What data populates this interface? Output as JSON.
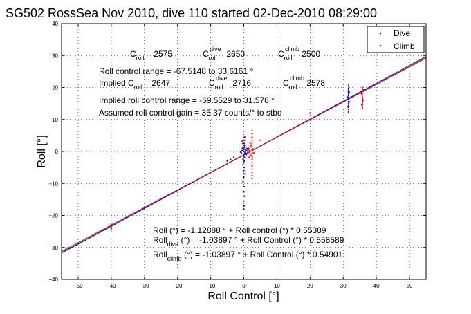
{
  "chart_data": {
    "type": "scatter",
    "title": "SG502 RossSea Nov 2010, dive 110 started 02-Dec-2010 08:29:00",
    "xlabel": "Roll Control [°]",
    "ylabel": "Roll [°]",
    "xlim": [
      -55,
      55
    ],
    "ylim": [
      -40,
      40
    ],
    "xticks": [
      -50,
      -40,
      -30,
      -20,
      -10,
      0,
      10,
      20,
      30,
      40,
      50
    ],
    "yticks": [
      -40,
      -30,
      -20,
      -10,
      0,
      10,
      20,
      30,
      40
    ],
    "grid": true,
    "legend_position": "top-right",
    "series": [
      {
        "name": "Dive",
        "color": "#0000ff",
        "marker": "dot",
        "points": [
          [
            31.6,
            21.0
          ],
          [
            31.6,
            20.4
          ],
          [
            31.6,
            19.8
          ],
          [
            31.6,
            19.2
          ],
          [
            31.6,
            18.6
          ],
          [
            31.6,
            18.0
          ],
          [
            31.6,
            17.4
          ],
          [
            31.6,
            16.8
          ],
          [
            31.6,
            16.2
          ],
          [
            31.6,
            15.6
          ],
          [
            31.6,
            15.0
          ],
          [
            31.6,
            14.4
          ],
          [
            31.6,
            13.8
          ],
          [
            31.6,
            13.2
          ],
          [
            31.6,
            12.6
          ],
          [
            31.6,
            12.2
          ],
          [
            31.3,
            17.0
          ],
          [
            31.9,
            15.5
          ],
          [
            31.4,
            14.0
          ],
          [
            31.8,
            18.5
          ],
          [
            0.2,
            1.8
          ],
          [
            0.1,
            1.2
          ],
          [
            0.0,
            0.6
          ],
          [
            -0.1,
            0.0
          ],
          [
            0.3,
            -0.6
          ],
          [
            0.0,
            -1.2
          ],
          [
            0.2,
            -1.8
          ],
          [
            -0.2,
            -2.4
          ],
          [
            0.1,
            -3.0
          ],
          [
            0.0,
            -3.6
          ],
          [
            -0.3,
            -4.2
          ],
          [
            0.1,
            -5.0
          ],
          [
            0.0,
            -6.0
          ],
          [
            0.2,
            -7.0
          ],
          [
            0.0,
            -8.0
          ],
          [
            -0.2,
            -9.5
          ],
          [
            0.1,
            -11.0
          ],
          [
            0.0,
            -12.5
          ],
          [
            0.2,
            -14.0
          ],
          [
            0.0,
            -15.5
          ],
          [
            0.1,
            -17.0
          ],
          [
            0.0,
            -18.0
          ],
          [
            0.5,
            0.5
          ],
          [
            0.7,
            1.0
          ],
          [
            0.4,
            -0.3
          ],
          [
            0.9,
            0.2
          ],
          [
            0.6,
            -0.8
          ],
          [
            1.0,
            0.7
          ],
          [
            -0.5,
            0.3
          ],
          [
            -0.7,
            -0.5
          ],
          [
            -0.4,
            1.0
          ],
          [
            -1.0,
            -0.2
          ],
          [
            -5.0,
            -3.0
          ],
          [
            -4.0,
            -2.5
          ],
          [
            -3.0,
            -1.8
          ],
          [
            -40.0,
            -24.0
          ],
          [
            0.1,
            2.5
          ],
          [
            0.0,
            3.5
          ],
          [
            0.2,
            4.5
          ]
        ]
      },
      {
        "name": "Climb",
        "color": "#ff0000",
        "marker": "dot",
        "points": [
          [
            35.8,
            20.0
          ],
          [
            35.8,
            19.4
          ],
          [
            35.8,
            18.8
          ],
          [
            35.8,
            18.2
          ],
          [
            35.8,
            17.6
          ],
          [
            35.8,
            17.0
          ],
          [
            35.8,
            16.4
          ],
          [
            35.8,
            15.8
          ],
          [
            35.8,
            15.2
          ],
          [
            35.8,
            14.6
          ],
          [
            35.8,
            14.0
          ],
          [
            35.8,
            13.5
          ],
          [
            35.5,
            18.0
          ],
          [
            36.1,
            16.0
          ],
          [
            35.6,
            14.5
          ],
          [
            36.0,
            19.5
          ],
          [
            2.5,
            6.5
          ],
          [
            2.5,
            5.5
          ],
          [
            2.5,
            4.5
          ],
          [
            2.5,
            3.5
          ],
          [
            2.5,
            2.5
          ],
          [
            2.5,
            1.5
          ],
          [
            2.5,
            0.5
          ],
          [
            2.5,
            -0.5
          ],
          [
            2.5,
            -1.5
          ],
          [
            2.5,
            -2.5
          ],
          [
            2.5,
            -3.5
          ],
          [
            2.5,
            -4.5
          ],
          [
            2.5,
            -5.5
          ],
          [
            2.5,
            -6.5
          ],
          [
            2.5,
            -7.5
          ],
          [
            2.5,
            -8.5
          ],
          [
            1.5,
            1.0
          ],
          [
            1.7,
            0.2
          ],
          [
            1.8,
            -0.6
          ],
          [
            2.0,
            1.6
          ],
          [
            2.2,
            -1.2
          ],
          [
            1.4,
            0.6
          ],
          [
            2.8,
            0.8
          ],
          [
            3.0,
            -0.4
          ],
          [
            1.2,
            -0.3
          ],
          [
            1.0,
            0.9
          ],
          [
            0.8,
            -1.0
          ],
          [
            2.3,
            2.0
          ],
          [
            2.6,
            -2.0
          ],
          [
            1.9,
            2.6
          ],
          [
            1.6,
            -1.8
          ],
          [
            0.3,
            3.5
          ],
          [
            0.4,
            4.5
          ],
          [
            -0.3,
            2.5
          ],
          [
            -0.5,
            3.2
          ],
          [
            -40.0,
            -23.5
          ],
          [
            -39.8,
            -22.8
          ],
          [
            -39.9,
            -24.5
          ],
          [
            -40.1,
            -23.0
          ],
          [
            5.0,
            3.5
          ],
          [
            10.0,
            10.5
          ],
          [
            20.0,
            12.0
          ]
        ]
      }
    ],
    "fit_lines": [
      {
        "label": "overall",
        "color": "#008000",
        "intercept": -1.12888,
        "slope": 0.55389
      },
      {
        "label": "dive",
        "color": "#0000ff",
        "intercept": -1.03897,
        "slope": 0.558589
      },
      {
        "label": "climb",
        "color": "#ff0000",
        "intercept": -1.03897,
        "slope": 0.54901
      }
    ],
    "annotations": {
      "croll_line": {
        "c1": "C",
        "c1sub": "roll",
        "c1val": " = 2575",
        "c2": "C",
        "c2sup": "dive",
        "c2sub": "roll",
        "c2val": " = 2650",
        "c3": "C",
        "c3sup": "climb",
        "c3sub": "roll",
        "c3val": " = 2500"
      },
      "range_line": "Roll control range = -67.5148 to 33.6161 °",
      "implied_line": {
        "prefix": "Implied C",
        "prefixsub": "roll",
        "val1": " = 2647",
        "c2": "C",
        "c2sup": "dive",
        "c2sub": "roll",
        "c2val": " = 2716",
        "c3": "C",
        "c3sup": "climb",
        "c3sub": "roll",
        "c3val": " = 2578"
      },
      "implied_range_line": "Implied roll control range = -69.5529 to 31.578 °",
      "gain_line": "Assumed roll control gain = 35.37 counts/° to stbd",
      "fit1": "Roll (°) = -1.12888 ° + Roll control (°) * 0.55389",
      "fit2": {
        "pre": "Roll",
        "sub": "dive",
        "post": " (°) = -1.03897 ° + Roll Control (°) * 0.558589"
      },
      "fit3": {
        "pre": "Roll",
        "sub": "climb",
        "post": " (°) = -1.03897 ° + Roll Control (°) * 0.54901"
      }
    }
  }
}
